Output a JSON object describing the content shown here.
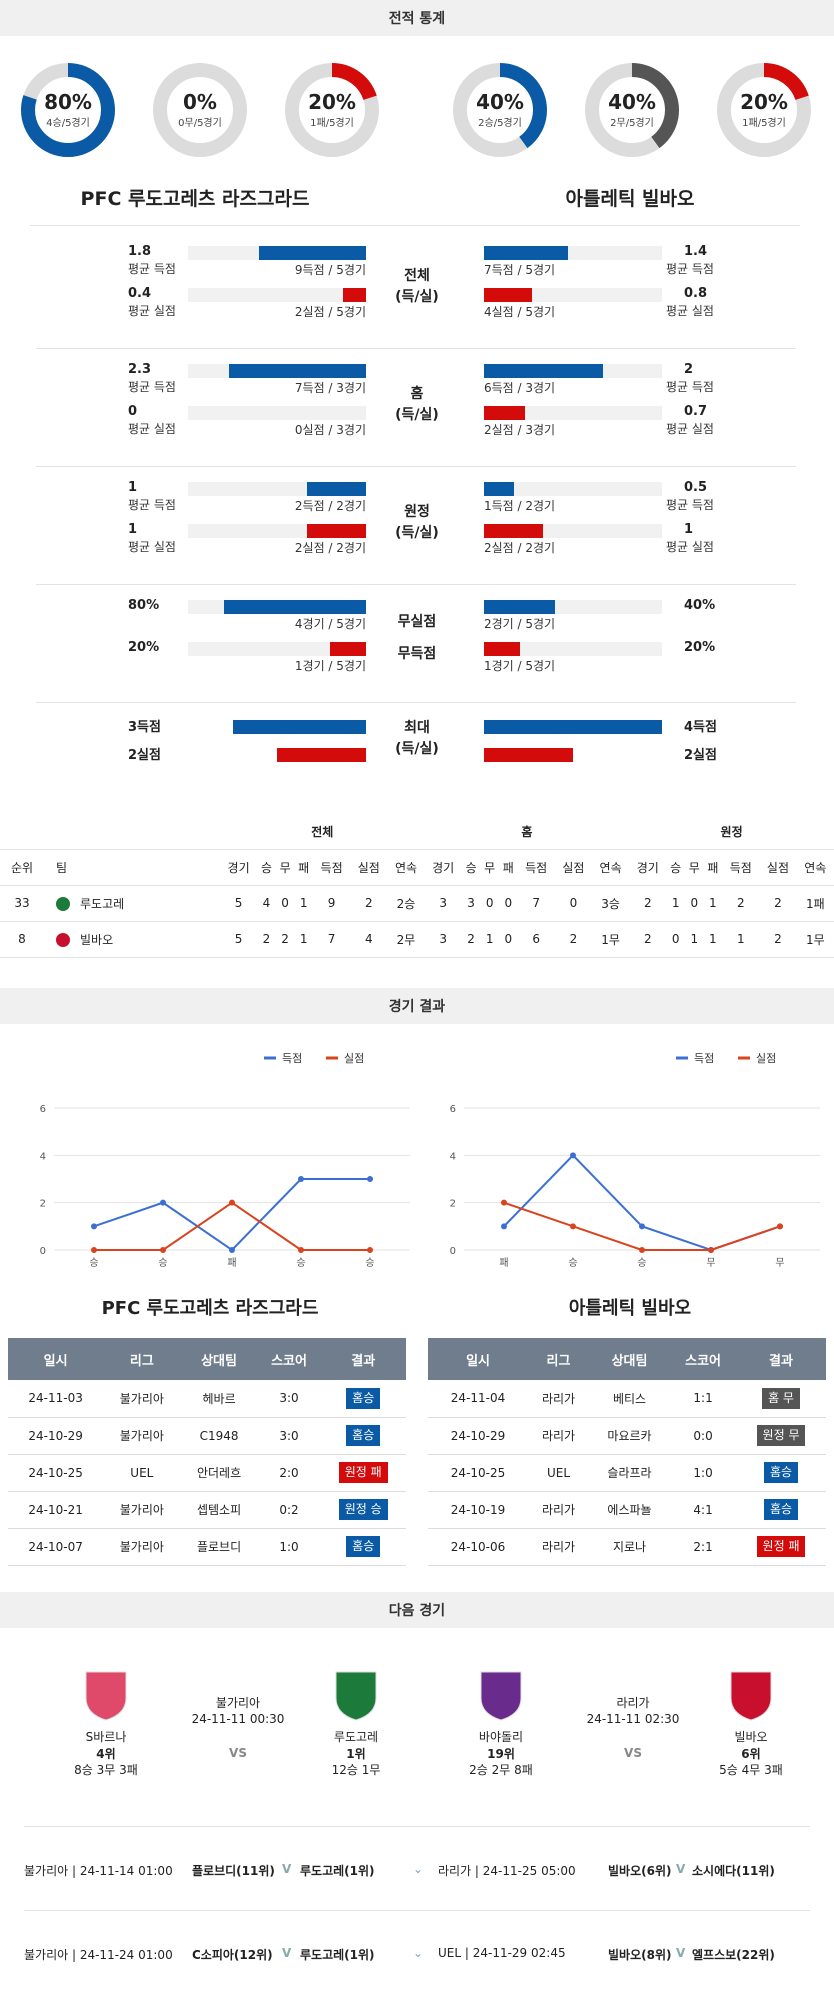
{
  "headers": {
    "stats": "전적 통계",
    "results": "경기 결과",
    "next": "다음 경기"
  },
  "donuts": [
    {
      "pct": "80%",
      "sub": "4승/5경기",
      "value": 0.8,
      "color": "#0b5aa5"
    },
    {
      "pct": "0%",
      "sub": "0무/5경기",
      "value": 0,
      "color": "#555555"
    },
    {
      "pct": "20%",
      "sub": "1패/5경기",
      "value": 0.2,
      "color": "#d40b0b"
    },
    {
      "pct": "40%",
      "sub": "2승/5경기",
      "value": 0.4,
      "color": "#0b5aa5"
    },
    {
      "pct": "40%",
      "sub": "2무/5경기",
      "value": 0.4,
      "color": "#555555"
    },
    {
      "pct": "20%",
      "sub": "1패/5경기",
      "value": 0.2,
      "color": "#d40b0b"
    }
  ],
  "teams": {
    "home": "PFC 루도고레츠 라즈그라드",
    "away": "아틀레틱 빌바오"
  },
  "compare": [
    {
      "center": [
        "전체",
        "(득/실)"
      ],
      "rows": [
        {
          "lv": "1.8",
          "ll": "평균 득점",
          "lc": "9득점 / 5경기",
          "lf": 0.6,
          "lcolor": "b",
          "rv": "1.4",
          "rl": "평균 득점",
          "rc": "7득점 / 5경기",
          "rf": 0.47,
          "rcolor": "b"
        },
        {
          "lv": "0.4",
          "ll": "평균 실점",
          "lc": "2실점 / 5경기",
          "lf": 0.13,
          "lcolor": "r",
          "rv": "0.8",
          "rl": "평균 실점",
          "rc": "4실점 / 5경기",
          "rf": 0.27,
          "rcolor": "r"
        }
      ]
    },
    {
      "center": [
        "홈",
        "(득/실)"
      ],
      "rows": [
        {
          "lv": "2.3",
          "ll": "평균 득점",
          "lc": "7득점 / 3경기",
          "lf": 0.77,
          "lcolor": "b",
          "rv": "2",
          "rl": "평균 득점",
          "rc": "6득점 / 3경기",
          "rf": 0.67,
          "rcolor": "b"
        },
        {
          "lv": "0",
          "ll": "평균 실점",
          "lc": "0실점 / 3경기",
          "lf": 0,
          "lcolor": "r",
          "rv": "0.7",
          "rl": "평균 실점",
          "rc": "2실점 / 3경기",
          "rf": 0.23,
          "rcolor": "r"
        }
      ]
    },
    {
      "center": [
        "원정",
        "(득/실)"
      ],
      "rows": [
        {
          "lv": "1",
          "ll": "평균 득점",
          "lc": "2득점 / 2경기",
          "lf": 0.33,
          "lcolor": "b",
          "rv": "0.5",
          "rl": "평균 득점",
          "rc": "1득점 / 2경기",
          "rf": 0.17,
          "rcolor": "b"
        },
        {
          "lv": "1",
          "ll": "평균 실점",
          "lc": "2실점 / 2경기",
          "lf": 0.33,
          "lcolor": "r",
          "rv": "1",
          "rl": "평균 실점",
          "rc": "2실점 / 2경기",
          "rf": 0.33,
          "rcolor": "r"
        }
      ]
    },
    {
      "center": [
        "무실점",
        "무득점"
      ],
      "pair": true,
      "rows": [
        {
          "lv": "80%",
          "ll": "",
          "lc": "4경기 / 5경기",
          "lf": 0.8,
          "lcolor": "b",
          "rv": "40%",
          "rl": "",
          "rc": "2경기 / 5경기",
          "rf": 0.4,
          "rcolor": "b"
        },
        {
          "lv": "20%",
          "ll": "",
          "lc": "1경기 / 5경기",
          "lf": 0.2,
          "lcolor": "r",
          "rv": "20%",
          "rl": "",
          "rc": "1경기 / 5경기",
          "rf": 0.2,
          "rcolor": "r"
        }
      ]
    },
    {
      "center": [
        "최대",
        "(득/실)"
      ],
      "max": true,
      "rows": [
        {
          "lv": "3득점",
          "lf": 0.75,
          "lcolor": "b",
          "rv": "4득점",
          "rf": 1.0,
          "rcolor": "b"
        },
        {
          "lv": "2실점",
          "lf": 0.5,
          "lcolor": "r",
          "rv": "2실점",
          "rf": 0.5,
          "rcolor": "r"
        }
      ]
    }
  ],
  "standings": {
    "groups": [
      "전체",
      "홈",
      "원정"
    ],
    "cols": [
      "순위",
      "팀"
    ],
    "sub": [
      "경기",
      "승",
      "무",
      "패",
      "득점",
      "실점",
      "연속"
    ],
    "rows": [
      {
        "rank": "33",
        "team": "루도고레",
        "vals": [
          "5",
          "4",
          "0",
          "1",
          "9",
          "2",
          "2승",
          "3",
          "3",
          "0",
          "0",
          "7",
          "0",
          "3승",
          "2",
          "1",
          "0",
          "1",
          "2",
          "2",
          "1패"
        ]
      },
      {
        "rank": "8",
        "team": "빌바오",
        "vals": [
          "5",
          "2",
          "2",
          "1",
          "7",
          "4",
          "2무",
          "3",
          "2",
          "1",
          "0",
          "6",
          "2",
          "1무",
          "2",
          "0",
          "1",
          "1",
          "1",
          "2",
          "1무"
        ]
      }
    ]
  },
  "chart_data": [
    {
      "type": "line",
      "categories": [
        "승",
        "승",
        "패",
        "승",
        "승"
      ],
      "ylim": [
        0,
        6
      ],
      "yticks": [
        "0",
        "2",
        "4",
        "6"
      ],
      "series": [
        {
          "name": "득점",
          "color": "#3b6fd1",
          "values": [
            1,
            2,
            0,
            3,
            3
          ]
        },
        {
          "name": "실점",
          "color": "#d9431e",
          "values": [
            0,
            0,
            2,
            0,
            0
          ]
        }
      ]
    },
    {
      "type": "line",
      "categories": [
        "패",
        "승",
        "승",
        "무",
        "무"
      ],
      "ylim": [
        0,
        6
      ],
      "yticks": [
        "0",
        "2",
        "4",
        "6"
      ],
      "series": [
        {
          "name": "득점",
          "color": "#3b6fd1",
          "values": [
            1,
            4,
            1,
            0,
            1
          ]
        },
        {
          "name": "실점",
          "color": "#d9431e",
          "values": [
            2,
            1,
            0,
            0,
            1
          ]
        }
      ]
    }
  ],
  "results": {
    "cols": [
      "일시",
      "리그",
      "상대팀",
      "스코어",
      "결과"
    ],
    "home": [
      {
        "date": "24-11-03",
        "league": "불가리아",
        "opp": "헤바르",
        "score": "3:0",
        "res": "홈승",
        "cls": "bw"
      },
      {
        "date": "24-10-29",
        "league": "불가리아",
        "opp": "C1948",
        "score": "3:0",
        "res": "홈승",
        "cls": "bw"
      },
      {
        "date": "24-10-25",
        "league": "UEL",
        "opp": "안더레흐",
        "score": "2:0",
        "res": "원정 패",
        "cls": "bl"
      },
      {
        "date": "24-10-21",
        "league": "불가리아",
        "opp": "셉템소피",
        "score": "0:2",
        "res": "원정 승",
        "cls": "bw"
      },
      {
        "date": "24-10-07",
        "league": "불가리아",
        "opp": "플로브디",
        "score": "1:0",
        "res": "홈승",
        "cls": "bw"
      }
    ],
    "away": [
      {
        "date": "24-11-04",
        "league": "라리가",
        "opp": "베티스",
        "score": "1:1",
        "res": "홈 무",
        "cls": "bd"
      },
      {
        "date": "24-10-29",
        "league": "라리가",
        "opp": "마요르카",
        "score": "0:0",
        "res": "원정 무",
        "cls": "bd"
      },
      {
        "date": "24-10-25",
        "league": "UEL",
        "opp": "슬라프라",
        "score": "1:0",
        "res": "홈승",
        "cls": "bw"
      },
      {
        "date": "24-10-19",
        "league": "라리가",
        "opp": "에스파뇰",
        "score": "4:1",
        "res": "홈승",
        "cls": "bw"
      },
      {
        "date": "24-10-06",
        "league": "라리가",
        "opp": "지로나",
        "score": "2:1",
        "res": "원정 패",
        "cls": "bl"
      }
    ]
  },
  "next": {
    "left": {
      "league": "불가리아",
      "time": "24-11-11 00:30",
      "vs": "VS",
      "t1": {
        "name": "S바르나",
        "rank": "4위",
        "rec": "8승 3무 3패"
      },
      "t2": {
        "name": "루도고레",
        "rank": "1위",
        "rec": "12승 1무"
      }
    },
    "right": {
      "league": "라리가",
      "time": "24-11-11 02:30",
      "vs": "VS",
      "t1": {
        "name": "바야돌리",
        "rank": "19위",
        "rec": "2승 2무 8패"
      },
      "t2": {
        "name": "빌바오",
        "rank": "6위",
        "rec": "5승 4무 3패"
      }
    }
  },
  "upcoming": [
    {
      "l": "불가리아 | 24-11-14 01:00",
      "a": "플로브디(11위)",
      "b": "루도고레(1위)",
      "r": "라리가 | 24-11-25 05:00",
      "c": "빌바오(6위)",
      "d": "소시에다(11위)"
    },
    {
      "l": "불가리아 | 24-11-24 01:00",
      "a": "C소피아(12위)",
      "b": "루도고레(1위)",
      "r": "UEL | 24-11-29 02:45",
      "c": "빌바오(8위)",
      "d": "엘프스보(22위)"
    }
  ],
  "vsmark": "V"
}
